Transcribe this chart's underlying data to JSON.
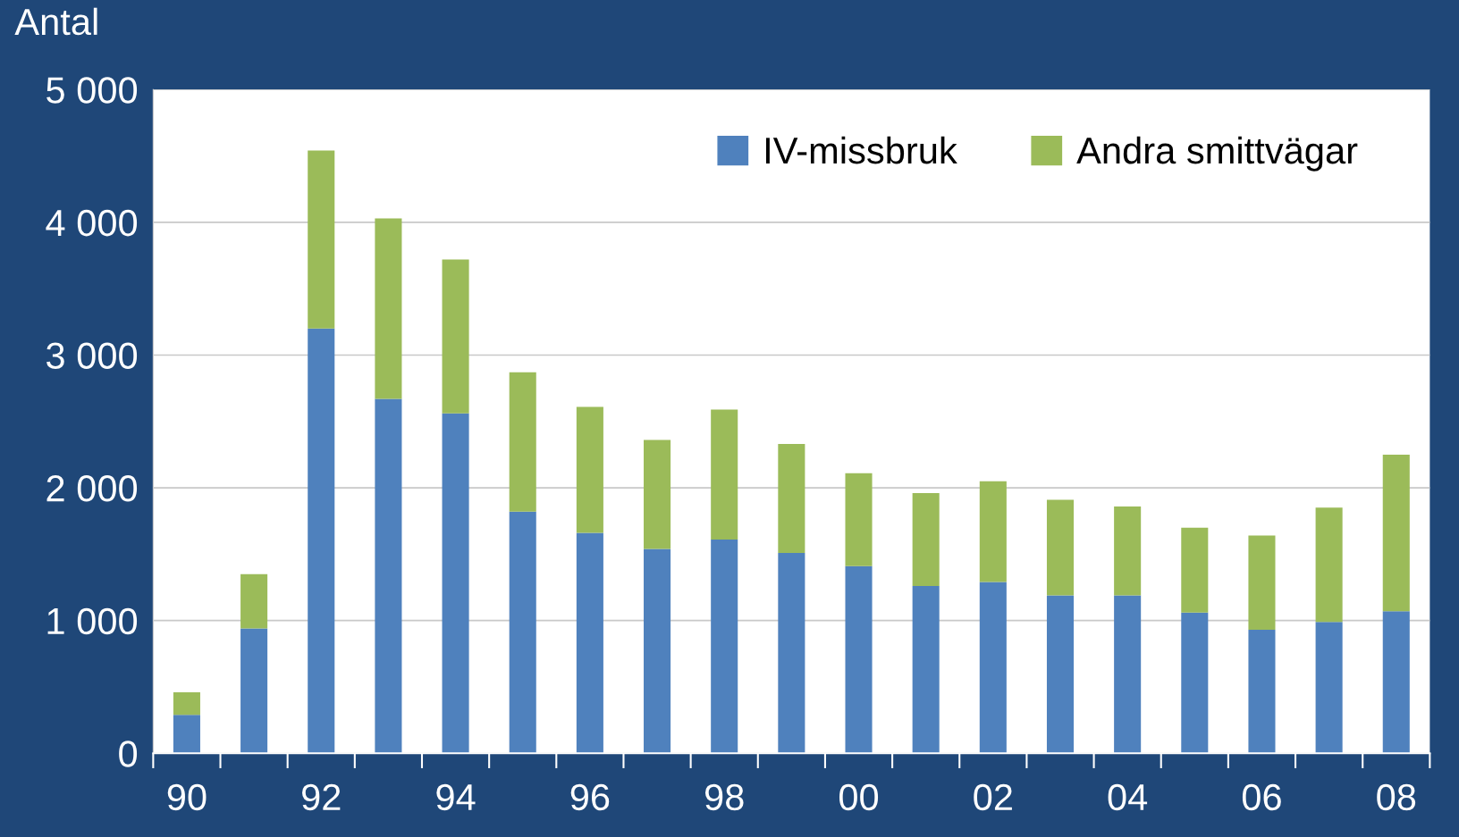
{
  "chart_data": {
    "type": "bar",
    "stacked": true,
    "ylabel": "Antal",
    "categories": [
      "90",
      null,
      "92",
      null,
      "94",
      null,
      "96",
      null,
      "98",
      null,
      "00",
      null,
      "02",
      null,
      "04",
      null,
      "06",
      null,
      "08"
    ],
    "series": [
      {
        "name": "IV-missbruk",
        "color": "#4f81bd",
        "values": [
          290,
          940,
          3200,
          2670,
          2560,
          1820,
          1660,
          1540,
          1610,
          1510,
          1410,
          1260,
          1290,
          1190,
          1190,
          1060,
          930,
          990,
          1070
        ]
      },
      {
        "name": "Andra smittvägar",
        "color": "#9bbb59",
        "values": [
          170,
          410,
          1340,
          1360,
          1160,
          1050,
          950,
          820,
          980,
          820,
          700,
          700,
          760,
          720,
          670,
          640,
          710,
          860,
          1180
        ]
      }
    ],
    "ylim": [
      0,
      5000
    ],
    "yticks": [
      0,
      {
        "value": 1000,
        "label": "1 000"
      },
      {
        "value": 2000,
        "label": "2 000"
      },
      {
        "value": 3000,
        "label": "3 000"
      },
      {
        "value": 4000,
        "label": "4 000"
      },
      {
        "value": 5000,
        "label": "5 000"
      }
    ],
    "grid": "y",
    "legend": "top right"
  }
}
